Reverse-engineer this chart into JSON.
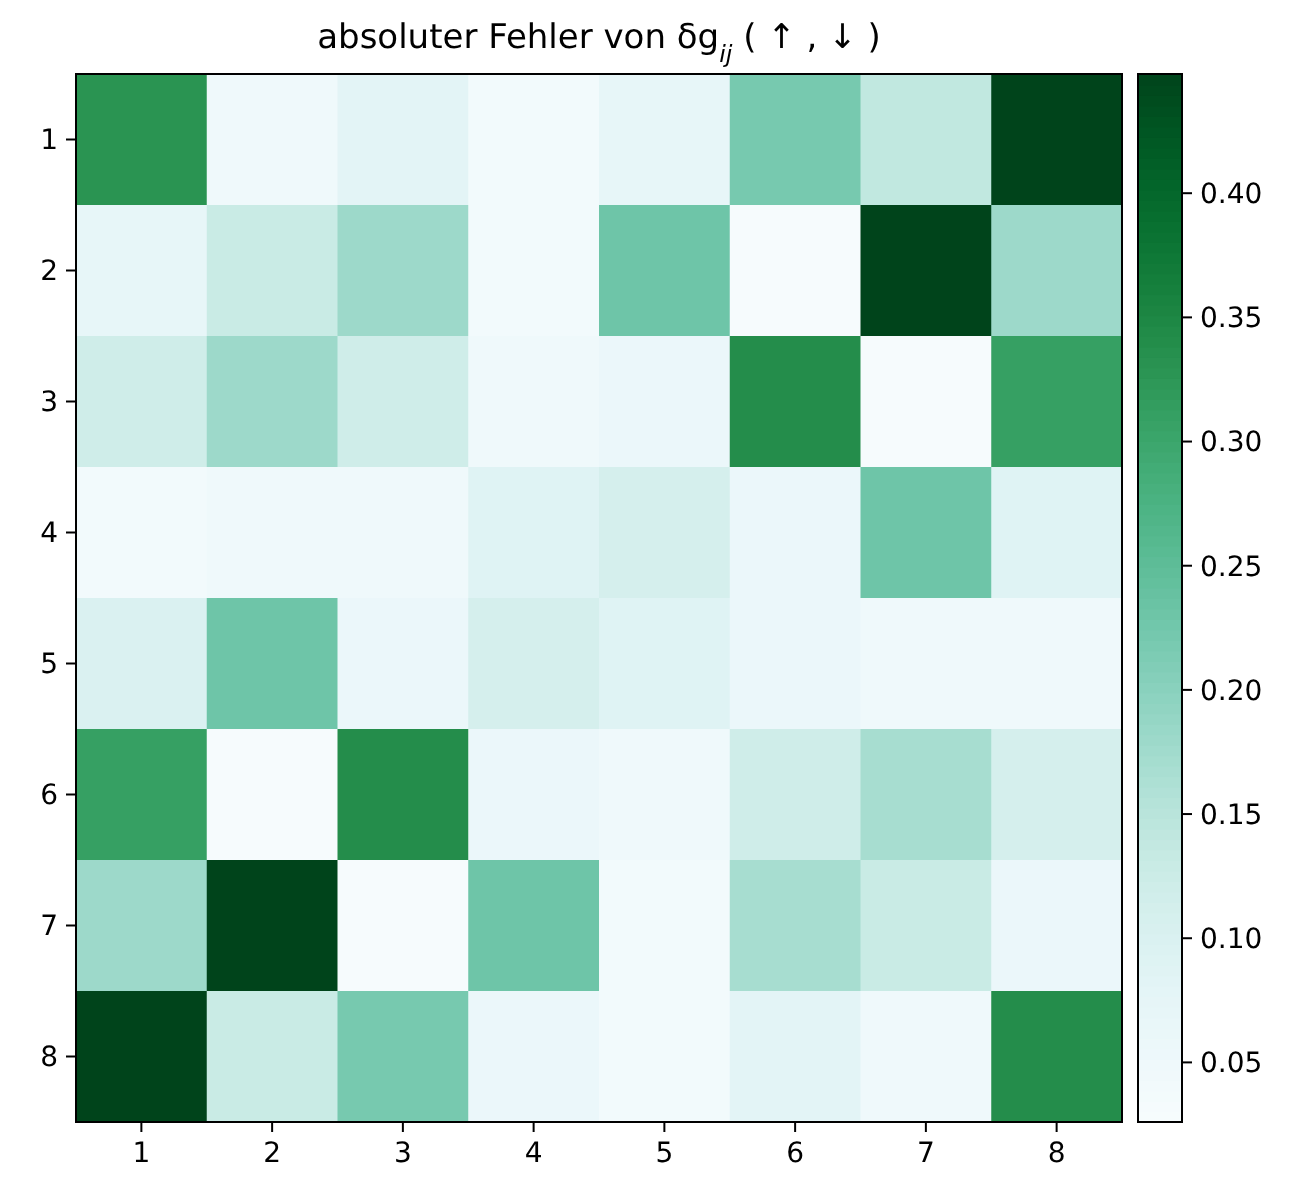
{
  "chart_data": {
    "type": "heatmap",
    "title": "absoluter Fehler von δg$_{ij}$ ( ↑ , ↓ )",
    "categories": [
      "1",
      "2",
      "3",
      "4",
      "5",
      "6",
      "7",
      "8"
    ],
    "y_categories": [
      "1",
      "2",
      "3",
      "4",
      "5",
      "6",
      "7",
      "8"
    ],
    "cells": [
      [
        0.33,
        0.05,
        0.08,
        0.04,
        0.07,
        0.22,
        0.14,
        0.448
      ],
      [
        0.07,
        0.13,
        0.18,
        0.04,
        0.23,
        0.03,
        0.448,
        0.18
      ],
      [
        0.12,
        0.18,
        0.12,
        0.05,
        0.06,
        0.34,
        0.03,
        0.31
      ],
      [
        0.04,
        0.05,
        0.05,
        0.09,
        0.11,
        0.06,
        0.23,
        0.09
      ],
      [
        0.1,
        0.23,
        0.06,
        0.11,
        0.09,
        0.06,
        0.05,
        0.05
      ],
      [
        0.31,
        0.03,
        0.34,
        0.06,
        0.05,
        0.12,
        0.17,
        0.11
      ],
      [
        0.18,
        0.448,
        0.03,
        0.23,
        0.04,
        0.17,
        0.13,
        0.06
      ],
      [
        0.448,
        0.13,
        0.22,
        0.06,
        0.04,
        0.08,
        0.05,
        0.34
      ]
    ],
    "clim": [
      0.026,
      0.448
    ],
    "cticks": [
      {
        "value": 0.05,
        "label": "0.05"
      },
      {
        "value": 0.1,
        "label": "0.10"
      },
      {
        "value": 0.15,
        "label": "0.15"
      },
      {
        "value": 0.2,
        "label": "0.20"
      },
      {
        "value": 0.25,
        "label": "0.25"
      },
      {
        "value": 0.3,
        "label": "0.30"
      },
      {
        "value": 0.35,
        "label": "0.35"
      },
      {
        "value": 0.4,
        "label": "0.40"
      }
    ]
  }
}
